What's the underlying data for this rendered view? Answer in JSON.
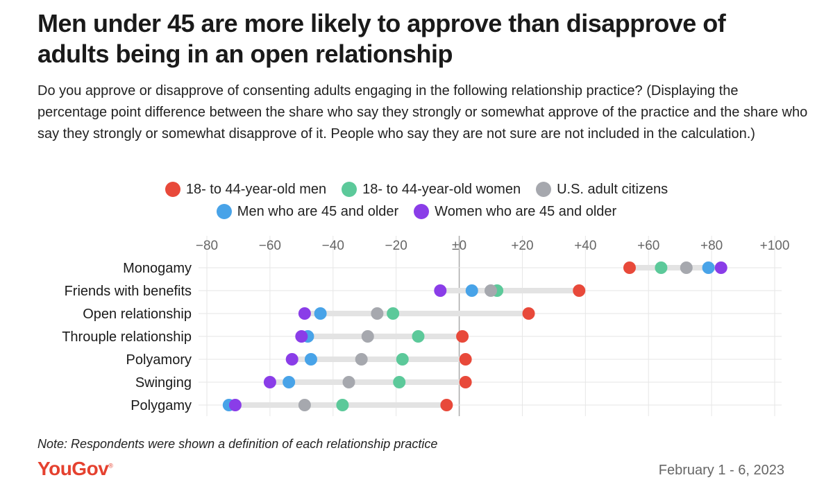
{
  "title": "Men under 45 are more likely to approve than disapprove of adults being in an open relationship",
  "subtitle": "Do you approve or disapprove of consenting adults engaging in the following relationship practice? (Displaying the percentage point difference between the share who say they strongly or somewhat approve of the practice and the share who say they strongly or somewhat disapprove of it. People who say they are not sure are not included in the calculation.)",
  "note": "Note: Respondents were shown a definition of each relationship practice",
  "logo": "YouGov",
  "date": "February 1 - 6, 2023",
  "colors": {
    "men_18_44": "#e8493a",
    "women_18_44": "#5cc99a",
    "us_adults": "#a6a8ae",
    "men_45_plus": "#48a3e8",
    "women_45_plus": "#8a3de8",
    "bar": "#e3e3e3",
    "grid": "#e6e6e6",
    "zero": "#aaaaaa"
  },
  "legend": {
    "row1": [
      {
        "label": "18- to 44-year-old men",
        "color": "#e8493a"
      },
      {
        "label": "18- to 44-year-old women",
        "color": "#5cc99a"
      },
      {
        "label": "U.S. adult citizens",
        "color": "#a6a8ae"
      }
    ],
    "row2": [
      {
        "label": "Men who are 45 and older",
        "color": "#48a3e8"
      },
      {
        "label": "Women who are 45 and older",
        "color": "#8a3de8"
      }
    ]
  },
  "chart_data": {
    "type": "dot-range",
    "title": "Men under 45 are more likely to approve than disapprove of adults being in an open relationship",
    "xlim": [
      -80,
      100
    ],
    "xticks": [
      -80,
      -60,
      -40,
      -20,
      0,
      20,
      40,
      60,
      80,
      100
    ],
    "xtick_labels": [
      "−80",
      "−60",
      "−40",
      "−20",
      "±0",
      "+20",
      "+40",
      "+60",
      "+80",
      "+100"
    ],
    "grid": true,
    "legend_position": "top-center",
    "categories": [
      "Monogamy",
      "Friends with benefits",
      "Open relationship",
      "Throuple relationship",
      "Polyamory",
      "Swinging",
      "Polygamy"
    ],
    "series": [
      {
        "name": "18- to 44-year-old men",
        "color": "#e8493a",
        "values": [
          54,
          38,
          22,
          1,
          2,
          2,
          -4
        ]
      },
      {
        "name": "18- to 44-year-old women",
        "color": "#5cc99a",
        "values": [
          64,
          12,
          -21,
          -13,
          -18,
          -19,
          -37
        ]
      },
      {
        "name": "U.S. adult citizens",
        "color": "#a6a8ae",
        "values": [
          72,
          10,
          -26,
          -29,
          -31,
          -35,
          -49
        ]
      },
      {
        "name": "Men who are 45 and older",
        "color": "#48a3e8",
        "values": [
          79,
          4,
          -44,
          -48,
          -47,
          -54,
          -73
        ]
      },
      {
        "name": "Women who are 45 and older",
        "color": "#8a3de8",
        "values": [
          83,
          -6,
          -49,
          -50,
          -53,
          -60,
          -71
        ]
      }
    ]
  }
}
